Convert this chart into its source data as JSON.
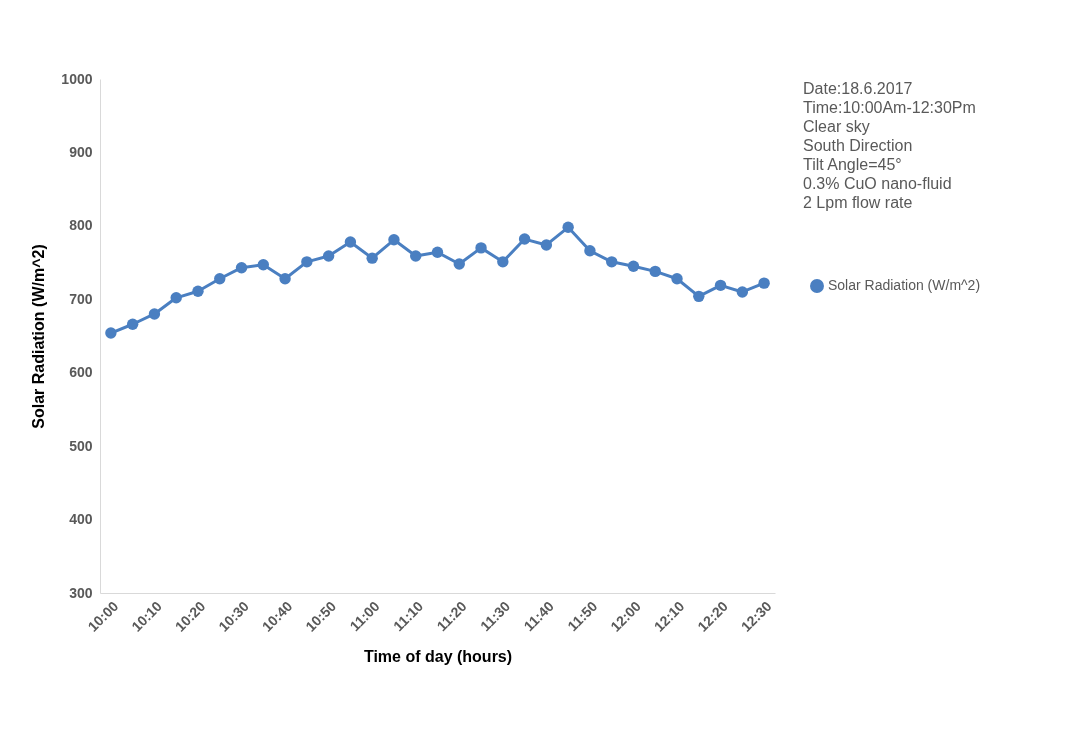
{
  "chart_data": {
    "type": "line",
    "xlabel": "Time of day (hours)",
    "ylabel": "Solar Radiation (W/m^2)",
    "categories": [
      "10:00",
      null,
      "10:10",
      null,
      "10:20",
      null,
      "10:30",
      null,
      "10:40",
      null,
      "10:50",
      null,
      "11:00",
      null,
      "11:10",
      null,
      "11:20",
      null,
      "11:30",
      null,
      "11:40",
      null,
      "11:50",
      null,
      "12:00",
      null,
      "12:10",
      null,
      "12:20",
      null,
      "12:30"
    ],
    "series": [
      {
        "name": "Solar Radiation (W/m^2)",
        "color": "#4a7fc1",
        "values": [
          654,
          666,
          680,
          702,
          711,
          728,
          743,
          747,
          728,
          751,
          759,
          778,
          756,
          781,
          759,
          764,
          748,
          770,
          751,
          782,
          774,
          798,
          766,
          751,
          745,
          738,
          728,
          704,
          719,
          710,
          722
        ]
      }
    ],
    "ylim": [
      300,
      1000
    ],
    "yticks": [
      300,
      400,
      500,
      600,
      700,
      800,
      900,
      1000
    ],
    "grid": false,
    "legend": "right",
    "marker": "circle",
    "line_style": "solid",
    "annotations": [
      "Date:18.6.2017",
      "Time:10:00Am-12:30Pm",
      "Clear sky",
      "South Direction",
      "Tilt Angle=45°",
      "0.3% CuO nano-fluid",
      "2 Lpm flow rate"
    ]
  }
}
